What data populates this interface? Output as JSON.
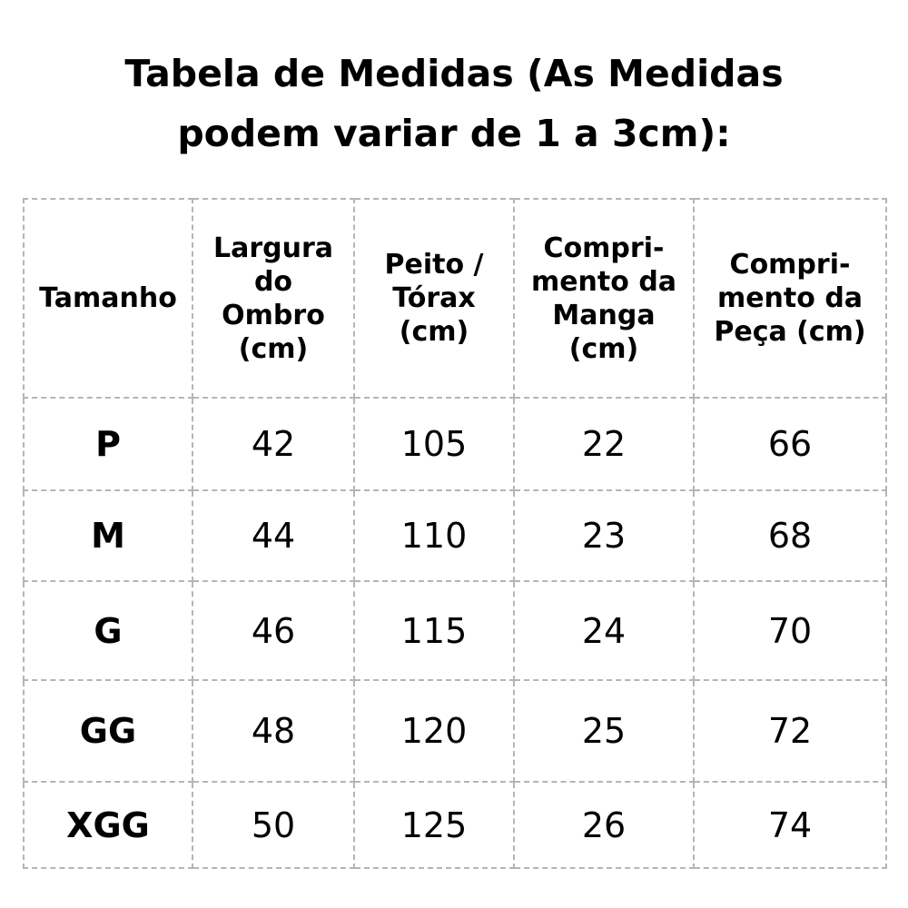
{
  "title_lines": [
    "Tabela de Medidas (As Medidas",
    "podem variar de 1 a 3cm):"
  ],
  "table": {
    "headers": [
      [
        "Tamanho"
      ],
      [
        "Largura",
        "do",
        "Ombro",
        "(cm)"
      ],
      [
        "Peito /",
        "Tórax",
        "(cm)"
      ],
      [
        "Compri-",
        "mento da",
        "Manga",
        "(cm)"
      ],
      [
        "Compri-",
        "mento da",
        "Peça (cm)"
      ]
    ],
    "rows": [
      [
        "P",
        "42",
        "105",
        "22",
        "66"
      ],
      [
        "M",
        "44",
        "110",
        "23",
        "68"
      ],
      [
        "G",
        "46",
        "115",
        "24",
        "70"
      ],
      [
        "GG",
        "48",
        "120",
        "25",
        "72"
      ],
      [
        "XGG",
        "50",
        "125",
        "26",
        "74"
      ]
    ]
  },
  "colors": {
    "border": "#b5b5b5",
    "text": "#000000"
  }
}
